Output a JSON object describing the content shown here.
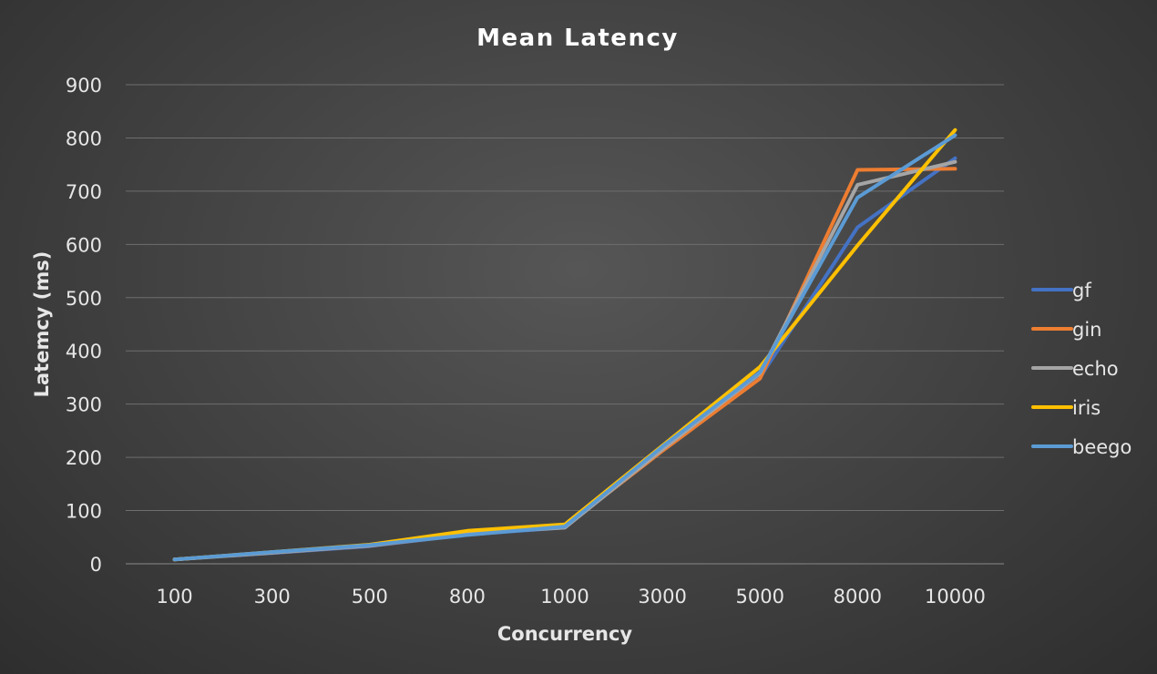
{
  "chart_data": {
    "type": "line",
    "title": "Mean Latency",
    "xlabel": "Concurrency",
    "ylabel": "Latemcy (ms)",
    "categories": [
      "100",
      "300",
      "500",
      "800",
      "1000",
      "3000",
      "5000",
      "8000",
      "10000"
    ],
    "ylim": [
      0,
      900
    ],
    "yticks": [
      0,
      100,
      200,
      300,
      400,
      500,
      600,
      700,
      800,
      900
    ],
    "grid": true,
    "legend_position": "right",
    "series": [
      {
        "name": "gf",
        "color": "#4472C4",
        "values": [
          8,
          20,
          33,
          55,
          68,
          218,
          350,
          632,
          762
        ]
      },
      {
        "name": "gin",
        "color": "#ED7D31",
        "values": [
          8,
          21,
          34,
          55,
          70,
          212,
          348,
          740,
          742
        ]
      },
      {
        "name": "echo",
        "color": "#A5A5A5",
        "values": [
          8,
          21,
          34,
          57,
          68,
          215,
          358,
          712,
          755
        ]
      },
      {
        "name": "iris",
        "color": "#FFC000",
        "values": [
          8,
          22,
          36,
          62,
          74,
          222,
          370,
          598,
          815
        ]
      },
      {
        "name": "beego",
        "color": "#5B9BD5",
        "values": [
          8,
          22,
          35,
          54,
          70,
          220,
          360,
          688,
          805
        ]
      }
    ]
  }
}
